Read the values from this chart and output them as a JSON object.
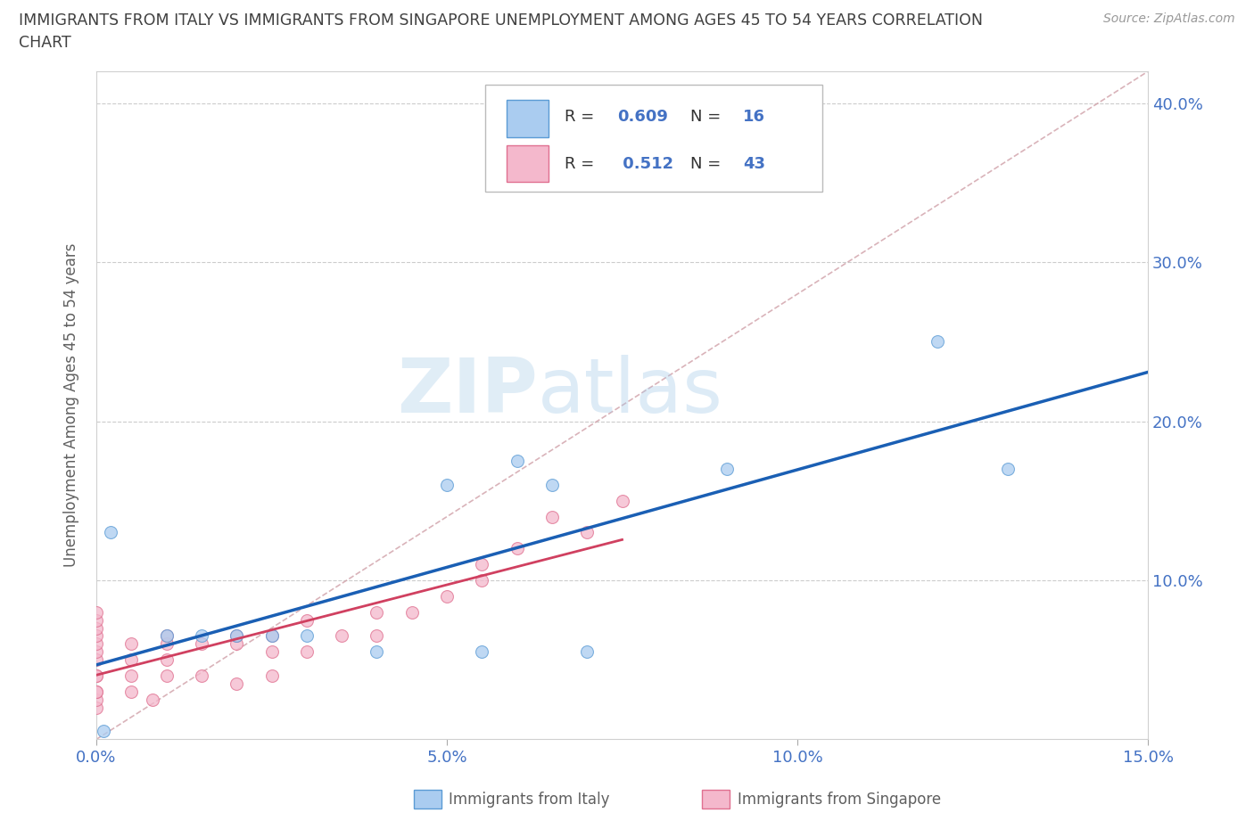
{
  "title_line1": "IMMIGRANTS FROM ITALY VS IMMIGRANTS FROM SINGAPORE UNEMPLOYMENT AMONG AGES 45 TO 54 YEARS CORRELATION",
  "title_line2": "CHART",
  "source": "Source: ZipAtlas.com",
  "ylabel": "Unemployment Among Ages 45 to 54 years",
  "xlim": [
    0.0,
    0.15
  ],
  "ylim": [
    0.0,
    0.42
  ],
  "xticks": [
    0.0,
    0.05,
    0.1,
    0.15
  ],
  "yticks": [
    0.1,
    0.2,
    0.3,
    0.4
  ],
  "xticklabels": [
    "0.0%",
    "5.0%",
    "10.0%",
    "15.0%"
  ],
  "yticklabels": [
    "10.0%",
    "20.0%",
    "30.0%",
    "40.0%"
  ],
  "italy_color": "#aaccf0",
  "italy_edge_color": "#5b9bd5",
  "singapore_color": "#f4b8cc",
  "singapore_edge_color": "#e07090",
  "italy_line_color": "#1a5fb4",
  "singapore_line_color": "#d04060",
  "diagonal_color": "#d0a0a8",
  "R_italy": 0.609,
  "N_italy": 16,
  "R_singapore": 0.512,
  "N_singapore": 43,
  "italy_x": [
    0.001,
    0.002,
    0.01,
    0.015,
    0.02,
    0.025,
    0.03,
    0.04,
    0.05,
    0.055,
    0.06,
    0.065,
    0.07,
    0.09,
    0.12,
    0.13
  ],
  "italy_y": [
    0.005,
    0.13,
    0.065,
    0.065,
    0.065,
    0.065,
    0.065,
    0.055,
    0.16,
    0.055,
    0.175,
    0.16,
    0.055,
    0.17,
    0.25,
    0.17
  ],
  "singapore_x": [
    0.0,
    0.0,
    0.0,
    0.0,
    0.0,
    0.0,
    0.0,
    0.0,
    0.0,
    0.0,
    0.0,
    0.0,
    0.0,
    0.005,
    0.005,
    0.005,
    0.005,
    0.008,
    0.01,
    0.01,
    0.01,
    0.01,
    0.015,
    0.015,
    0.02,
    0.02,
    0.02,
    0.025,
    0.025,
    0.025,
    0.03,
    0.03,
    0.035,
    0.04,
    0.04,
    0.045,
    0.05,
    0.055,
    0.055,
    0.06,
    0.065,
    0.07,
    0.075
  ],
  "singapore_y": [
    0.02,
    0.025,
    0.03,
    0.03,
    0.04,
    0.04,
    0.05,
    0.055,
    0.06,
    0.065,
    0.07,
    0.075,
    0.08,
    0.03,
    0.04,
    0.05,
    0.06,
    0.025,
    0.04,
    0.05,
    0.06,
    0.065,
    0.04,
    0.06,
    0.035,
    0.06,
    0.065,
    0.04,
    0.055,
    0.065,
    0.055,
    0.075,
    0.065,
    0.065,
    0.08,
    0.08,
    0.09,
    0.1,
    0.11,
    0.12,
    0.14,
    0.13,
    0.15
  ],
  "watermark_zip": "ZIP",
  "watermark_atlas": "atlas",
  "background_color": "#ffffff",
  "grid_color": "#cccccc",
  "title_color": "#404040",
  "axis_color": "#606060",
  "tick_color": "#4472c4",
  "legend_R_color": "#4472c4",
  "legend_label_italy": "Immigrants from Italy",
  "legend_label_singapore": "Immigrants from Singapore"
}
